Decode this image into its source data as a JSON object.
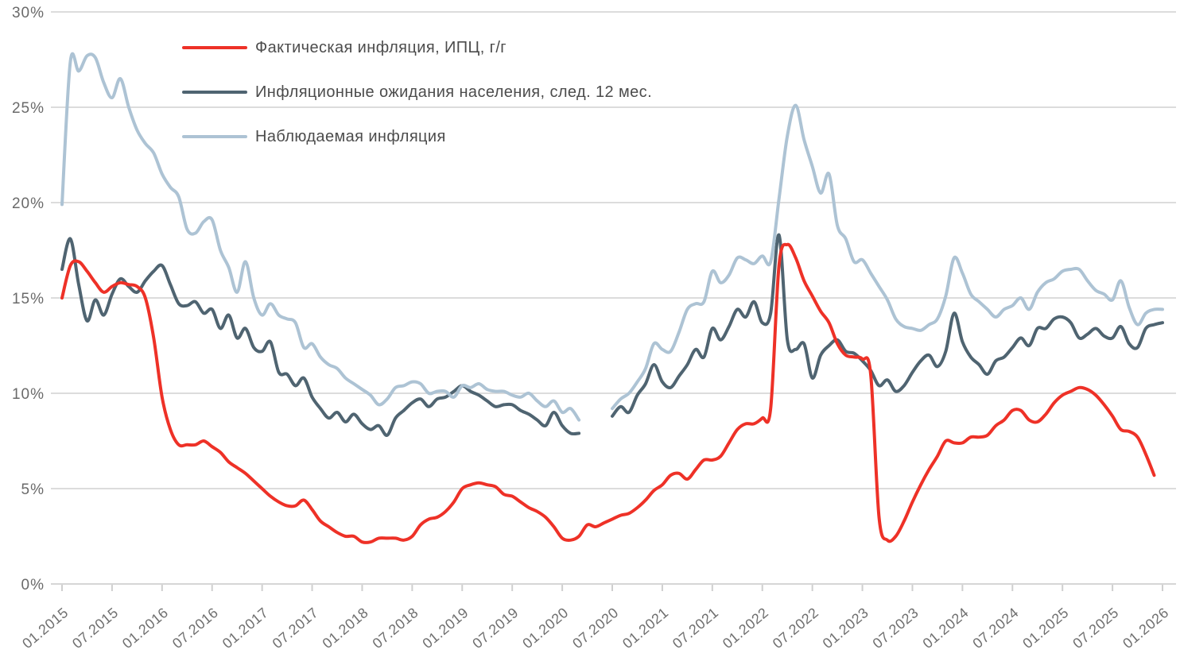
{
  "chart_data": {
    "type": "line",
    "title": "",
    "xlabel": "",
    "ylabel": "",
    "grid": "horizontal",
    "legend_position": "top-left-inside",
    "x_unit": "month",
    "x_range": [
      "01.2015",
      "01.2026"
    ],
    "x_tick_labels": [
      "01.2015",
      "07.2015",
      "01.2016",
      "07.2016",
      "01.2017",
      "07.2017",
      "01.2018",
      "07.2018",
      "01.2019",
      "07.2019",
      "01.2020",
      "07.2020",
      "01.2021",
      "07.2021",
      "01.2022",
      "07.2022",
      "01.2023",
      "07.2023",
      "01.2024",
      "07.2024",
      "01.2025",
      "07.2025",
      "01.2026"
    ],
    "y_axis": {
      "min": 0,
      "max": 30,
      "step": 5,
      "unit": "%",
      "tick_values": [
        0,
        5,
        10,
        15,
        20,
        25,
        30
      ],
      "tick_labels": [
        "0%",
        "5%",
        "10%",
        "15%",
        "20%",
        "25%",
        "30%"
      ]
    },
    "note": "monthly values in percent, y/y; null = survey gap (Apr-Jun 2020)",
    "series": [
      {
        "key": "cpi-actual",
        "name": "Фактическая инфляция, ИПЦ, г/г",
        "color": "#ee3127",
        "values": [
          15.0,
          16.7,
          16.9,
          16.4,
          15.8,
          15.3,
          15.6,
          15.8,
          15.7,
          15.6,
          15.0,
          12.9,
          9.8,
          8.1,
          7.3,
          7.3,
          7.3,
          7.5,
          7.2,
          6.9,
          6.4,
          6.1,
          5.8,
          5.4,
          5.0,
          4.6,
          4.3,
          4.1,
          4.1,
          4.4,
          3.9,
          3.3,
          3.0,
          2.7,
          2.5,
          2.5,
          2.2,
          2.2,
          2.4,
          2.4,
          2.4,
          2.3,
          2.5,
          3.1,
          3.4,
          3.5,
          3.8,
          4.3,
          5.0,
          5.2,
          5.3,
          5.2,
          5.1,
          4.7,
          4.6,
          4.3,
          4.0,
          3.8,
          3.5,
          3.0,
          2.4,
          2.3,
          2.5,
          3.1,
          3.0,
          3.2,
          3.4,
          3.6,
          3.7,
          4.0,
          4.4,
          4.9,
          5.2,
          5.7,
          5.8,
          5.5,
          6.0,
          6.5,
          6.5,
          6.7,
          7.4,
          8.1,
          8.4,
          8.4,
          8.7,
          9.2,
          16.7,
          17.8,
          17.1,
          15.9,
          15.1,
          14.3,
          13.7,
          12.6,
          12.0,
          11.9,
          11.8,
          11.0,
          3.5,
          2.3,
          2.5,
          3.3,
          4.3,
          5.2,
          6.0,
          6.7,
          7.5,
          7.4,
          7.4,
          7.7,
          7.7,
          7.8,
          8.3,
          8.6,
          9.1,
          9.1,
          8.6,
          8.5,
          8.9,
          9.5,
          9.9,
          10.1,
          10.3,
          10.2,
          9.9,
          9.4,
          8.8,
          8.1,
          8.0,
          7.7,
          6.8,
          5.7
        ]
      },
      {
        "key": "expected-inflation",
        "name": "Инфляционные ожидания населения, след. 12 мес.",
        "color": "#4f6471",
        "values": [
          16.5,
          18.1,
          15.7,
          13.8,
          14.9,
          14.1,
          15.2,
          16.0,
          15.6,
          15.3,
          15.9,
          16.4,
          16.7,
          15.7,
          14.7,
          14.6,
          14.8,
          14.2,
          14.4,
          13.4,
          14.1,
          12.9,
          13.4,
          12.4,
          12.2,
          12.7,
          11.1,
          11.0,
          10.4,
          10.8,
          9.8,
          9.2,
          8.7,
          9.0,
          8.5,
          8.9,
          8.4,
          8.1,
          8.3,
          7.8,
          8.7,
          9.1,
          9.5,
          9.7,
          9.3,
          9.7,
          9.8,
          10.1,
          10.4,
          10.1,
          9.9,
          9.6,
          9.3,
          9.4,
          9.4,
          9.1,
          8.9,
          8.6,
          8.3,
          9.0,
          8.3,
          7.9,
          7.9,
          null,
          null,
          null,
          8.8,
          9.3,
          9.0,
          9.9,
          10.5,
          11.5,
          10.6,
          10.3,
          10.9,
          11.5,
          12.3,
          11.9,
          13.4,
          12.8,
          13.5,
          14.4,
          14.0,
          14.8,
          13.7,
          14.2,
          18.3,
          12.8,
          12.3,
          12.6,
          10.8,
          12.0,
          12.5,
          12.8,
          12.2,
          12.1,
          11.7,
          11.2,
          10.4,
          10.7,
          10.1,
          10.4,
          11.1,
          11.7,
          12.0,
          11.4,
          12.2,
          14.2,
          12.7,
          11.9,
          11.5,
          11.0,
          11.7,
          11.9,
          12.4,
          12.9,
          12.5,
          13.4,
          13.4,
          13.9,
          14.0,
          13.7,
          12.9,
          13.1,
          13.4,
          13.0,
          12.9,
          13.5,
          12.6,
          12.4,
          13.4,
          13.6,
          13.7
        ]
      },
      {
        "key": "observed-inflation",
        "name": "Наблюдаемая инфляция",
        "color": "#adc3d4",
        "values": [
          19.9,
          27.4,
          26.9,
          27.7,
          27.6,
          26.3,
          25.5,
          26.5,
          25.0,
          23.8,
          23.1,
          22.6,
          21.5,
          20.8,
          20.3,
          18.6,
          18.4,
          19.0,
          19.1,
          17.5,
          16.6,
          15.3,
          16.9,
          15.0,
          14.1,
          14.7,
          14.1,
          13.9,
          13.7,
          12.4,
          12.6,
          11.9,
          11.5,
          11.3,
          10.8,
          10.5,
          10.2,
          9.9,
          9.4,
          9.7,
          10.3,
          10.4,
          10.6,
          10.5,
          10.0,
          10.1,
          10.1,
          9.8,
          10.4,
          10.3,
          10.5,
          10.2,
          10.1,
          10.1,
          9.9,
          9.8,
          10.0,
          9.6,
          9.3,
          9.6,
          9.0,
          9.2,
          8.6,
          null,
          null,
          null,
          9.2,
          9.7,
          10.0,
          10.6,
          11.3,
          12.6,
          12.3,
          12.2,
          13.2,
          14.4,
          14.7,
          14.8,
          16.4,
          15.8,
          16.2,
          17.1,
          17.0,
          16.8,
          17.2,
          16.9,
          20.2,
          23.5,
          25.1,
          23.3,
          21.9,
          20.5,
          21.5,
          18.8,
          18.1,
          16.9,
          17.0,
          16.3,
          15.6,
          14.9,
          13.9,
          13.5,
          13.4,
          13.3,
          13.6,
          13.9,
          15.1,
          17.1,
          16.3,
          15.2,
          14.8,
          14.4,
          14.0,
          14.4,
          14.6,
          15.0,
          14.4,
          15.3,
          15.8,
          16.0,
          16.4,
          16.5,
          16.5,
          15.9,
          15.4,
          15.2,
          14.9,
          15.9,
          14.5,
          13.6,
          14.2,
          14.4,
          14.4
        ]
      }
    ]
  },
  "colors": {
    "background": "#ffffff",
    "gridline": "#dcdcdc",
    "tick": "#cfcfcf",
    "axis_label": "#6f6f6f",
    "legend_text": "#4c4c4c"
  }
}
